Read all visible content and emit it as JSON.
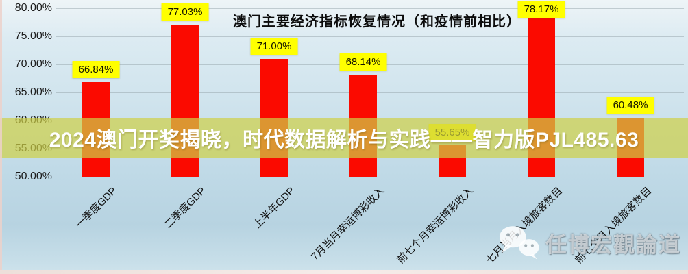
{
  "chart_data": {
    "type": "bar",
    "title": "澳门主要经济指标恢复情况（和疫情前相比）",
    "categories": [
      "一季度GDP",
      "二季度GDP",
      "上半年GDP",
      "7月当月幸运博彩收入",
      "前七个月幸运博彩收入",
      "七月当月入境旅客数目",
      "前七个月入境旅客数目"
    ],
    "values": [
      66.84,
      77.03,
      71.0,
      68.14,
      55.65,
      78.17,
      60.48
    ],
    "value_labels": [
      "66.84%",
      "77.03%",
      "71.00%",
      "68.14%",
      "55.65%",
      "78.17%",
      "60.48%"
    ],
    "ytick_labels": [
      "80.00%",
      "75.00%",
      "70.00%",
      "65.00%",
      "60.00%",
      "55.00%",
      "50.00%"
    ],
    "ytick_values": [
      80,
      75,
      70,
      65,
      60,
      55,
      50
    ],
    "ylim": [
      50,
      80
    ],
    "grid": true,
    "legend_position": "none",
    "bar_color": "#fb0a00",
    "value_label_bg": "#ffff00",
    "value_label_color": "#151500"
  },
  "overlay_banner": {
    "text": "2024澳门开奖揭晓，时代数据解析与实践——智力版PJL485.63",
    "bg_color": "rgba(206,208,70,0.70)",
    "text_color": "#ffffff"
  },
  "watermark": {
    "icon": "wechat-icon",
    "text": "任博宏觀論道"
  }
}
